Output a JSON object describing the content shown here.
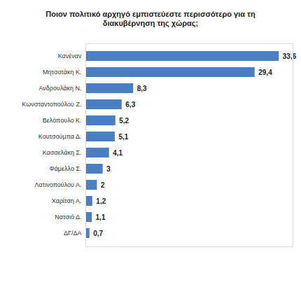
{
  "chart_data": {
    "type": "bar",
    "orientation": "horizontal",
    "title": "Ποιον πολιτικό αρχηγό εμπιστεύεστε περισσότερο για τη διακυβέρνηση της χώρας;",
    "categories": [
      "Κανέναν",
      "Μητσοτάκη Κ.",
      "Ανδρουλάκη Ν.",
      "Κωνσταντοπούλου Ζ.",
      "Βελόπουλο Κ.",
      "Κουτσούμπα Δ.",
      "Κασσελάκη Σ.",
      "Φάμελλο Σ.",
      "Λατινοπούλου Α.",
      "Χαρίτση Α.",
      "Νατσιό Δ.",
      "ΔΓ/ΔΑ"
    ],
    "values": [
      33.6,
      29.4,
      8.3,
      6.3,
      5.2,
      5.1,
      4.1,
      3,
      2,
      1.2,
      1.1,
      0.7
    ],
    "value_labels": [
      "33,6",
      "29,4",
      "8,3",
      "6,3",
      "5,2",
      "5,1",
      "4,1",
      "3",
      "2",
      "1,2",
      "1,1",
      "0,7"
    ],
    "color": "#4a7fc4",
    "xlim": [
      0,
      36
    ],
    "xticks": [],
    "data_labels": true,
    "tick_labels": "y",
    "grid": false
  }
}
